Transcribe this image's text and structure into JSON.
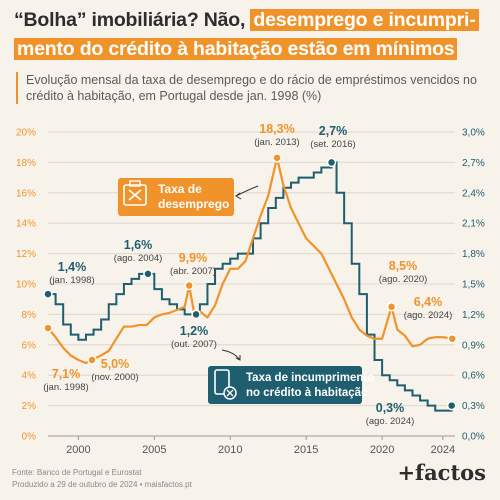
{
  "header": {
    "title_plain": "“Bolha” imobiliária? Não,",
    "title_highlight_1": "desemprego e incumpri-",
    "title_highlight_2": "mento do crédito à habitação estão em mínimos",
    "subtitle": "Evolução mensal da taxa de desemprego e do rácio de empréstimos vencidos no crédito à habitação, em Portugal desde jan. 1998 (%)"
  },
  "colors": {
    "unemployment": "#f0932b",
    "default": "#1f5e6e",
    "axis_text": "#555555",
    "grid": "#e0d8cc"
  },
  "chart_data": {
    "type": "line",
    "x_range": [
      1998,
      2024.8
    ],
    "x_ticks": [
      2000,
      2005,
      2010,
      2015,
      2020,
      2024
    ],
    "y_left": {
      "range": [
        0,
        20
      ],
      "ticks": [
        "0%",
        "2%",
        "4%",
        "6%",
        "8%",
        "10%",
        "12%",
        "14%",
        "16%",
        "18%",
        "20%"
      ]
    },
    "y_right": {
      "range": [
        0,
        3.0
      ],
      "ticks": [
        "0,0%",
        "0,3%",
        "0,6%",
        "0,9%",
        "1,2%",
        "1,5%",
        "1,8%",
        "2,1%",
        "2,4%",
        "2,7%",
        "3,0%"
      ]
    },
    "series": [
      {
        "name": "Taxa de desemprego",
        "axis": "left",
        "points": [
          [
            1998.0,
            7.1
          ],
          [
            1998.5,
            6.5
          ],
          [
            1999.0,
            5.8
          ],
          [
            1999.5,
            5.3
          ],
          [
            2000.0,
            5.0
          ],
          [
            2000.5,
            4.8
          ],
          [
            2000.9,
            5.0
          ],
          [
            2001.5,
            5.3
          ],
          [
            2002.0,
            5.6
          ],
          [
            2002.5,
            6.4
          ],
          [
            2003.0,
            7.2
          ],
          [
            2003.5,
            7.2
          ],
          [
            2004.0,
            7.3
          ],
          [
            2004.5,
            7.3
          ],
          [
            2005.0,
            7.8
          ],
          [
            2005.5,
            8.0
          ],
          [
            2006.0,
            8.1
          ],
          [
            2006.5,
            8.3
          ],
          [
            2007.0,
            8.5
          ],
          [
            2007.3,
            9.9
          ],
          [
            2007.6,
            8.2
          ],
          [
            2008.0,
            8.2
          ],
          [
            2008.5,
            7.8
          ],
          [
            2009.0,
            8.6
          ],
          [
            2009.5,
            10.0
          ],
          [
            2010.0,
            11.0
          ],
          [
            2010.5,
            11.0
          ],
          [
            2011.0,
            11.5
          ],
          [
            2011.5,
            13.0
          ],
          [
            2012.0,
            14.5
          ],
          [
            2012.5,
            15.8
          ],
          [
            2013.08,
            18.3
          ],
          [
            2013.5,
            16.5
          ],
          [
            2014.0,
            15.0
          ],
          [
            2014.5,
            14.0
          ],
          [
            2015.0,
            13.0
          ],
          [
            2015.5,
            12.5
          ],
          [
            2016.0,
            12.0
          ],
          [
            2016.5,
            11.0
          ],
          [
            2017.0,
            10.0
          ],
          [
            2017.5,
            9.0
          ],
          [
            2018.0,
            7.8
          ],
          [
            2018.5,
            7.0
          ],
          [
            2019.0,
            6.6
          ],
          [
            2019.5,
            6.4
          ],
          [
            2020.0,
            6.4
          ],
          [
            2020.62,
            8.5
          ],
          [
            2021.0,
            7.0
          ],
          [
            2021.5,
            6.6
          ],
          [
            2022.0,
            5.9
          ],
          [
            2022.5,
            6.0
          ],
          [
            2023.0,
            6.4
          ],
          [
            2023.5,
            6.5
          ],
          [
            2024.0,
            6.5
          ],
          [
            2024.62,
            6.4
          ]
        ]
      },
      {
        "name": "Taxa de incumprimento no crédito à habitação",
        "axis": "right",
        "points": [
          [
            1998.0,
            1.4
          ],
          [
            1998.5,
            1.3
          ],
          [
            1999.0,
            1.1
          ],
          [
            1999.5,
            1.0
          ],
          [
            2000.0,
            0.95
          ],
          [
            2000.5,
            1.0
          ],
          [
            2001.0,
            1.05
          ],
          [
            2001.5,
            1.15
          ],
          [
            2002.0,
            1.3
          ],
          [
            2002.5,
            1.4
          ],
          [
            2003.0,
            1.5
          ],
          [
            2003.5,
            1.55
          ],
          [
            2004.0,
            1.6
          ],
          [
            2004.58,
            1.6
          ],
          [
            2005.0,
            1.45
          ],
          [
            2005.5,
            1.35
          ],
          [
            2006.0,
            1.3
          ],
          [
            2006.5,
            1.25
          ],
          [
            2007.0,
            1.2
          ],
          [
            2007.5,
            1.2
          ],
          [
            2007.75,
            1.2
          ],
          [
            2008.0,
            1.3
          ],
          [
            2008.5,
            1.5
          ],
          [
            2009.0,
            1.65
          ],
          [
            2009.5,
            1.7
          ],
          [
            2010.0,
            1.75
          ],
          [
            2010.5,
            1.8
          ],
          [
            2011.0,
            1.8
          ],
          [
            2011.5,
            1.95
          ],
          [
            2012.0,
            2.1
          ],
          [
            2012.5,
            2.25
          ],
          [
            2013.0,
            2.35
          ],
          [
            2013.5,
            2.45
          ],
          [
            2014.0,
            2.5
          ],
          [
            2014.5,
            2.55
          ],
          [
            2015.0,
            2.55
          ],
          [
            2015.5,
            2.6
          ],
          [
            2016.0,
            2.65
          ],
          [
            2016.67,
            2.7
          ],
          [
            2017.0,
            2.4
          ],
          [
            2017.5,
            2.1
          ],
          [
            2018.0,
            1.7
          ],
          [
            2018.5,
            1.4
          ],
          [
            2019.0,
            1.0
          ],
          [
            2019.5,
            0.75
          ],
          [
            2020.0,
            0.6
          ],
          [
            2020.5,
            0.55
          ],
          [
            2021.0,
            0.5
          ],
          [
            2021.5,
            0.45
          ],
          [
            2022.0,
            0.4
          ],
          [
            2022.5,
            0.35
          ],
          [
            2023.0,
            0.3
          ],
          [
            2023.5,
            0.25
          ],
          [
            2024.0,
            0.25
          ],
          [
            2024.58,
            0.3
          ]
        ]
      }
    ],
    "annotations": [
      {
        "series": "unemployment",
        "value": "7,1%",
        "date": "(jan. 1998)"
      },
      {
        "series": "unemployment",
        "value": "5,0%",
        "date": "(nov. 2000)"
      },
      {
        "series": "unemployment",
        "value": "9,9%",
        "date": "(abr. 2007)"
      },
      {
        "series": "unemployment",
        "value": "18,3%",
        "date": "(jan. 2013)"
      },
      {
        "series": "unemployment",
        "value": "8,5%",
        "date": "(ago. 2020)"
      },
      {
        "series": "unemployment",
        "value": "6,4%",
        "date": "(ago. 2024)"
      },
      {
        "series": "default",
        "value": "1,4%",
        "date": "(jan. 1998)"
      },
      {
        "series": "default",
        "value": "1,6%",
        "date": "(ago. 2004)"
      },
      {
        "series": "default",
        "value": "1,2%",
        "date": "(out. 2007)"
      },
      {
        "series": "default",
        "value": "2,7%",
        "date": "(set. 2016)"
      },
      {
        "series": "default",
        "value": "0,3%",
        "date": "(ago. 2024)"
      }
    ],
    "legend": {
      "unemployment_line1": "Taxa de",
      "unemployment_line2": "desemprego",
      "default_line1": "Taxa de incumprimento",
      "default_line2": "no crédito à habitação",
      "unemployment_icon": "briefcase-icon",
      "default_icon": "phone-card-icon"
    }
  },
  "footer": {
    "source": "Fonte: Banco de Portugal e Eurostat",
    "produced": "Produzido a 29 de outubro de 2024 • maisfactos.pt",
    "logo": "+factos"
  }
}
